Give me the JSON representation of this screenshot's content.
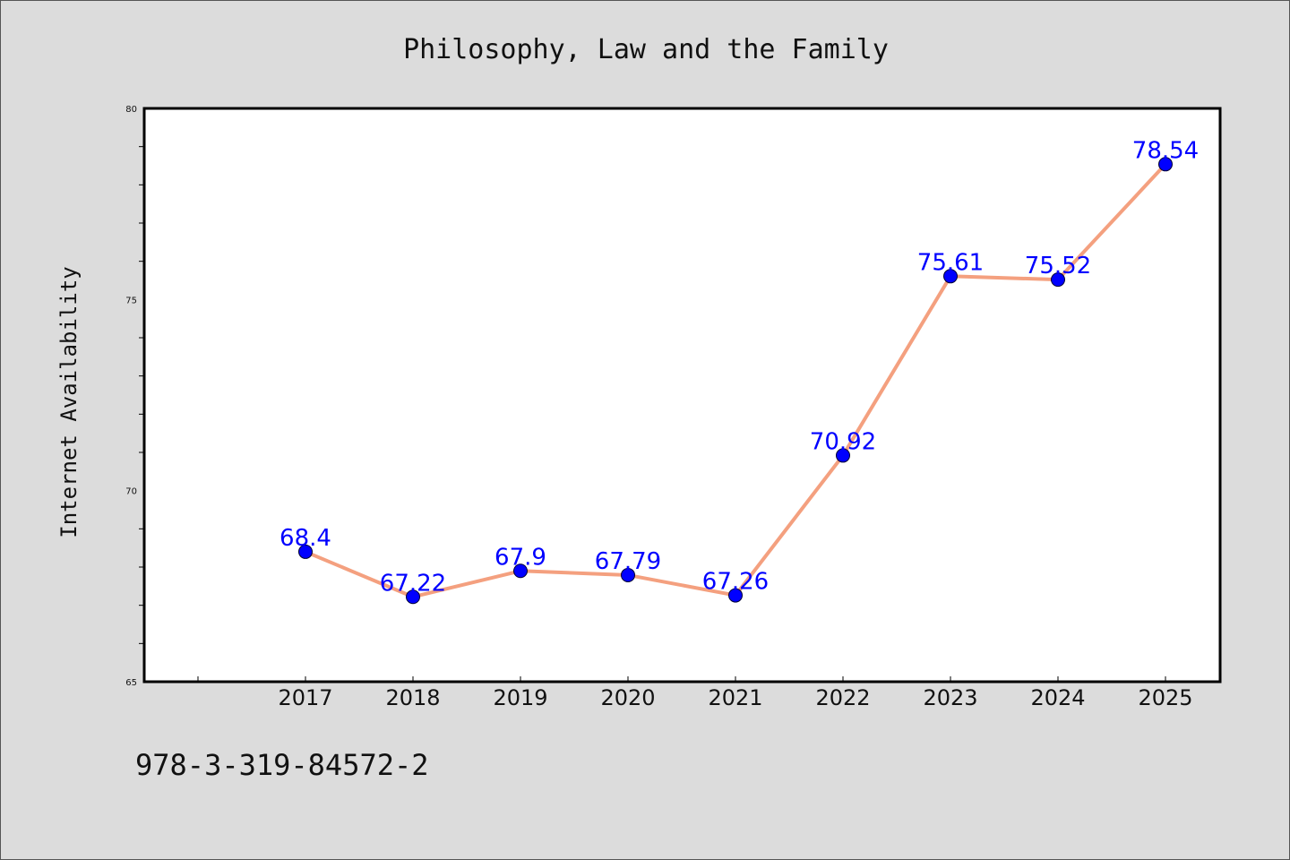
{
  "footer_code": "978-3-319-84572-2",
  "colors": {
    "background": "#dcdcdc",
    "plot_background": "#ffffff",
    "line": "#f4a07f",
    "marker": "#0000ff",
    "data_label": "#0000ff"
  },
  "chart_data": {
    "type": "line",
    "title": "Philosophy, Law and the Family",
    "xlabel": "",
    "ylabel": "Internet Availability",
    "categories": [
      "2017",
      "2018",
      "2019",
      "2020",
      "2021",
      "2022",
      "2023",
      "2024",
      "2025"
    ],
    "series": [
      {
        "values": [
          68.4,
          67.22,
          67.9,
          67.79,
          67.26,
          70.92,
          75.61,
          75.52,
          78.54
        ],
        "labels": [
          "68.4",
          "67.22",
          "67.9",
          "67.79",
          "67.26",
          "70.92",
          "75.61",
          "75.52",
          "78.54"
        ]
      }
    ],
    "ylim": [
      65,
      80
    ],
    "yticks": [
      "65",
      "70",
      "75",
      "80"
    ],
    "grid": false,
    "legend": false
  }
}
